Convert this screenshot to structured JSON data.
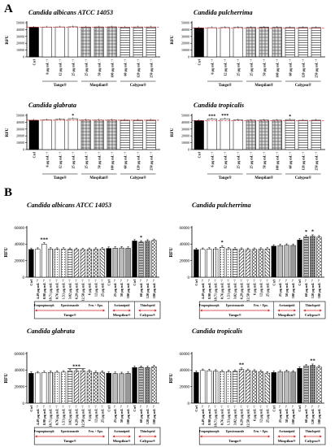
{
  "panel_labels": [
    "A",
    "B"
  ],
  "common": {
    "ylabel": "RFU",
    "control_label": "Ctrl",
    "a_ticks": [
      "0",
      "10000",
      "20000",
      "30000",
      "40000",
      "50000"
    ],
    "b_ticks": [
      "0",
      "20000",
      "40000",
      "60000"
    ],
    "a_xlabels": [
      "Ctrl",
      "6 µg mL⁻¹",
      "12 µg mL⁻¹",
      "25 µg mL⁻¹",
      "25 µg mL⁻¹",
      "50 µg mL⁻¹",
      "100 µg mL⁻¹",
      "60 µg mL⁻¹",
      "120 µg mL⁻¹",
      "250 µg mL⁻¹"
    ],
    "a_groups": [
      "Tango®",
      "Mospilan®",
      "Calypso®"
    ],
    "b_xlabels": [
      "Ctrl",
      "4.49 µg mL⁻¹",
      "8.98 µg mL⁻¹",
      "18.71 µg mL⁻¹",
      "0.76 µg mL⁻¹",
      "1.51 µg mL⁻¹",
      "3.02 µg mL⁻¹",
      "6.29 µg mL⁻¹",
      "12.58 µg mL⁻¹",
      "6 µg mL⁻¹",
      "12 µg mL⁻¹",
      "25 µg mL⁻¹",
      "Ctrl",
      "25 µg mL⁻¹",
      "50 µg mL⁻¹",
      "100 µg mL⁻¹",
      "Ctrl",
      "60 µg mL⁻¹",
      "120 µg mL⁻¹",
      "180 µg mL⁻¹"
    ],
    "b_subgroups": [
      "Fenpropimorph",
      "Epoxiconazole",
      "Fen. + Epo.",
      "Acetamiprid",
      "Thiacloprid"
    ],
    "b_groups": [
      "Tango®",
      "Mospilan®",
      "Calypso®"
    ]
  },
  "chart_data": [
    {
      "panel": "A",
      "type": "bar",
      "title": "Candida albicans ATCC 14053",
      "ylabel": "RFU",
      "ylim": [
        0,
        50000
      ],
      "categories": [
        "Ctrl",
        "6 µg mL⁻¹",
        "12 µg mL⁻¹",
        "25 µg mL⁻¹",
        "25 µg mL⁻¹",
        "50 µg mL⁻¹",
        "100 µg mL⁻¹",
        "60 µg mL⁻¹",
        "120 µg mL⁻¹",
        "250 µg mL⁻¹"
      ],
      "values": [
        43500,
        43800,
        43900,
        44100,
        43800,
        43900,
        44000,
        43700,
        43900,
        43900
      ],
      "reference_line": 43500,
      "annotations": []
    },
    {
      "panel": "A",
      "type": "bar",
      "title": "Candida pulcherrima",
      "ylabel": "RFU",
      "ylim": [
        0,
        50000
      ],
      "categories": [
        "Ctrl",
        "6 µg mL⁻¹",
        "12 µg mL⁻¹",
        "25 µg mL⁻¹",
        "25 µg mL⁻¹",
        "50 µg mL⁻¹",
        "100 µg mL⁻¹",
        "60 µg mL⁻¹",
        "120 µg mL⁻¹",
        "250 µg mL⁻¹"
      ],
      "values": [
        42500,
        42800,
        43000,
        43100,
        43200,
        43600,
        43300,
        43000,
        43100,
        43000
      ],
      "reference_line": 42500,
      "annotations": []
    },
    {
      "panel": "A",
      "type": "bar",
      "title": "Candida glabrata",
      "ylabel": "RFU",
      "ylim": [
        0,
        50000
      ],
      "categories": [
        "Ctrl",
        "6 µg mL⁻¹",
        "12 µg mL⁻¹",
        "25 µg mL⁻¹",
        "25 µg mL⁻¹",
        "50 µg mL⁻¹",
        "100 µg mL⁻¹",
        "60 µg mL⁻¹",
        "120 µg mL⁻¹",
        "250 µg mL⁻¹"
      ],
      "values": [
        43000,
        43400,
        44200,
        45200,
        43300,
        43200,
        43300,
        43100,
        43000,
        43200
      ],
      "reference_line": 43000,
      "annotations": [
        {
          "index": 3,
          "text": "*"
        }
      ]
    },
    {
      "panel": "A",
      "type": "bar",
      "title": "Candida tropicalis",
      "ylabel": "RFU",
      "ylim": [
        0,
        50000
      ],
      "categories": [
        "Ctrl",
        "6 µg mL⁻¹",
        "12 µg mL⁻¹",
        "25 µg mL⁻¹",
        "25 µg mL⁻¹",
        "50 µg mL⁻¹",
        "100 µg mL⁻¹",
        "60 µg mL⁻¹",
        "120 µg mL⁻¹",
        "250 µg mL⁻¹"
      ],
      "values": [
        42500,
        44800,
        45000,
        43300,
        43000,
        43100,
        43000,
        43900,
        42800,
        43000
      ],
      "reference_line": 42500,
      "annotations": [
        {
          "index": 1,
          "text": "***"
        },
        {
          "index": 2,
          "text": "***"
        },
        {
          "index": 7,
          "text": "*"
        }
      ]
    },
    {
      "panel": "B",
      "type": "bar",
      "title": "Candida albicans ATCC 14053",
      "ylabel": "RFU",
      "ylim": [
        0,
        60000
      ],
      "categories": [
        "Ctrl",
        "4.49 µg mL⁻¹",
        "8.98 µg mL⁻¹",
        "18.71 µg mL⁻¹",
        "0.76 µg mL⁻¹",
        "1.51 µg mL⁻¹",
        "3.02 µg mL⁻¹",
        "6.29 µg mL⁻¹",
        "12.58 µg mL⁻¹",
        "6 µg mL⁻¹",
        "12 µg mL⁻¹",
        "25 µg mL⁻¹",
        "Ctrl",
        "25 µg mL⁻¹",
        "50 µg mL⁻¹",
        "100 µg mL⁻¹",
        "Ctrl",
        "60 µg mL⁻¹",
        "120 µg mL⁻¹",
        "180 µg mL⁻¹"
      ],
      "values": [
        33500,
        33800,
        40000,
        34000,
        33800,
        33900,
        33600,
        33500,
        33400,
        33600,
        33800,
        34200,
        34800,
        35100,
        35300,
        35000,
        43800,
        42500,
        43600,
        44400
      ],
      "annotations": [
        {
          "index": 2,
          "text": "***"
        },
        {
          "index": 17,
          "text": "*"
        }
      ]
    },
    {
      "panel": "B",
      "type": "bar",
      "title": "Candida pulcherrima",
      "ylabel": "RFU",
      "ylim": [
        0,
        60000
      ],
      "categories": [
        "Ctrl",
        "4.49 µg mL⁻¹",
        "8.98 µg mL⁻¹",
        "18.71 µg mL⁻¹",
        "0.76 µg mL⁻¹",
        "1.51 µg mL⁻¹",
        "3.02 µg mL⁻¹",
        "6.29 µg mL⁻¹",
        "12.58 µg mL⁻¹",
        "6 µg mL⁻¹",
        "12 µg mL⁻¹",
        "25 µg mL⁻¹",
        "Ctrl",
        "25 µg mL⁻¹",
        "50 µg mL⁻¹",
        "100 µg mL⁻¹",
        "Ctrl",
        "60 µg mL⁻¹",
        "120 µg mL⁻¹",
        "180 µg mL⁻¹"
      ],
      "values": [
        33300,
        33600,
        34000,
        34200,
        36200,
        34300,
        34000,
        33700,
        33500,
        33600,
        33800,
        34000,
        37500,
        38200,
        38600,
        38400,
        45000,
        49000,
        49500,
        48500
      ],
      "annotations": [
        {
          "index": 4,
          "text": "*"
        },
        {
          "index": 17,
          "text": "*"
        },
        {
          "index": 18,
          "text": "*"
        }
      ]
    },
    {
      "panel": "B",
      "type": "bar",
      "title": "Candida glabrata",
      "ylabel": "RFU",
      "ylim": [
        0,
        60000
      ],
      "categories": [
        "Ctrl",
        "4.49 µg mL⁻¹",
        "8.98 µg mL⁻¹",
        "18.71 µg mL⁻¹",
        "0.76 µg mL⁻¹",
        "1.51 µg mL⁻¹",
        "3.02 µg mL⁻¹",
        "6.29 µg mL⁻¹",
        "12.58 µg mL⁻¹",
        "6 µg mL⁻¹",
        "12 µg mL⁻¹",
        "25 µg mL⁻¹",
        "Ctrl",
        "25 µg mL⁻¹",
        "50 µg mL⁻¹",
        "100 µg mL⁻¹",
        "Ctrl",
        "60 µg mL⁻¹",
        "120 µg mL⁻¹",
        "180 µg mL⁻¹"
      ],
      "values": [
        36000,
        36500,
        37000,
        37200,
        37300,
        37500,
        39000,
        38800,
        39000,
        38500,
        37000,
        37300,
        36200,
        35800,
        35600,
        36000,
        43000,
        43300,
        43000,
        44000
      ],
      "annotations": [
        {
          "index": 7,
          "text": "***"
        }
      ],
      "bracket": [
        6,
        8
      ]
    },
    {
      "panel": "B",
      "type": "bar",
      "title": "Candida tropicalis",
      "ylabel": "RFU",
      "ylim": [
        0,
        60000
      ],
      "categories": [
        "Ctrl",
        "4.49 µg mL⁻¹",
        "8.98 µg mL⁻¹",
        "18.71 µg mL⁻¹",
        "0.76 µg mL⁻¹",
        "1.51 µg mL⁻¹",
        "3.02 µg mL⁻¹",
        "6.29 µg mL⁻¹",
        "12.58 µg mL⁻¹",
        "6 µg mL⁻¹",
        "12 µg mL⁻¹",
        "25 µg mL⁻¹",
        "Ctrl",
        "25 µg mL⁻¹",
        "50 µg mL⁻¹",
        "100 µg mL⁻¹",
        "Ctrl",
        "60 µg mL⁻¹",
        "120 µg mL⁻¹",
        "180 µg mL⁻¹"
      ],
      "values": [
        37200,
        39500,
        39200,
        38700,
        38000,
        38200,
        38500,
        40800,
        39500,
        38700,
        38000,
        36300,
        37000,
        37800,
        38300,
        37600,
        42000,
        45000,
        45500,
        43800
      ],
      "annotations": [
        {
          "index": 7,
          "text": "**"
        },
        {
          "index": 18,
          "text": "**"
        }
      ]
    }
  ]
}
